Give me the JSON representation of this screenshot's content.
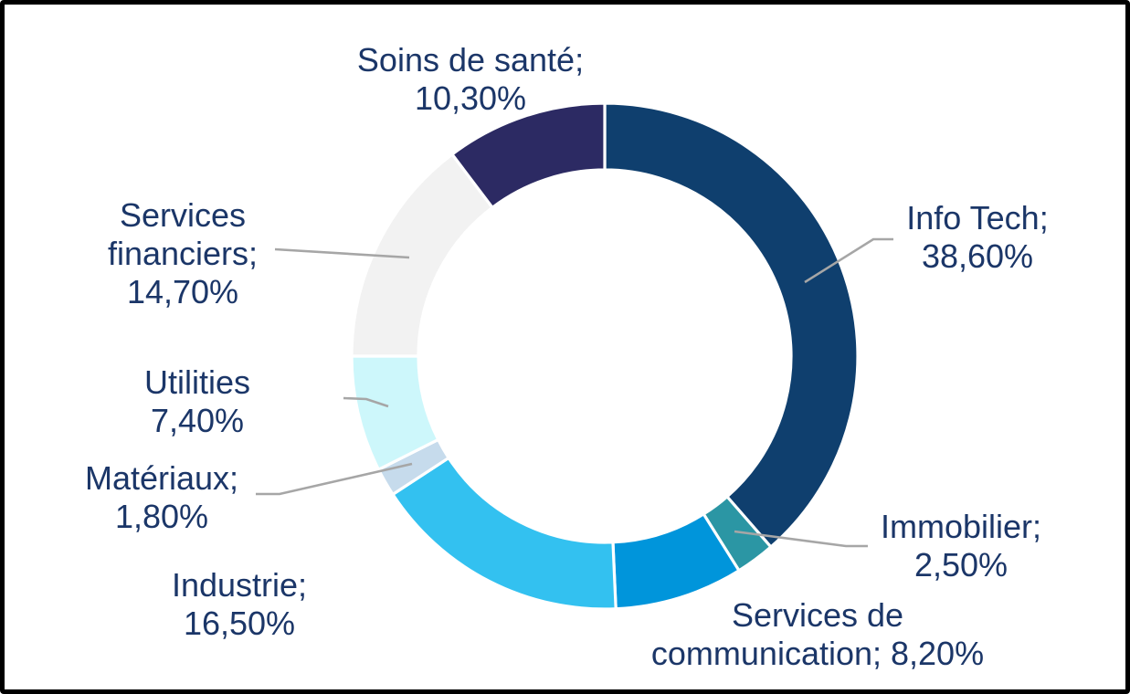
{
  "chart_data": {
    "type": "pie",
    "subtype": "donut",
    "title": "",
    "unit": "%",
    "number_format": "french-comma",
    "start_angle_deg": 0,
    "direction": "clockwise",
    "total": 100,
    "legend_position": "none",
    "segments": [
      {
        "id": "info-tech",
        "label": "Info Tech",
        "value": 38.6,
        "display": "Info Tech; 38,60%",
        "lines": [
          "Info Tech;",
          "38,60%"
        ],
        "color": "#0F3F6E",
        "leader_line": true
      },
      {
        "id": "immobilier",
        "label": "Immobilier",
        "value": 2.5,
        "display": "Immobilier; 2,50%",
        "lines": [
          "Immobilier;",
          "2,50%"
        ],
        "color": "#2B96A4",
        "leader_line": true
      },
      {
        "id": "services-de-communication",
        "label": "Services de communication",
        "value": 8.2,
        "display": "Services de communication; 8,20%",
        "lines": [
          "Services de",
          "communication; 8,20%"
        ],
        "color": "#0095DB",
        "leader_line": false
      },
      {
        "id": "industrie",
        "label": "Industrie",
        "value": 16.5,
        "display": "Industrie; 16,50%",
        "lines": [
          "Industrie;",
          "16,50%"
        ],
        "color": "#33C1F0",
        "leader_line": false
      },
      {
        "id": "materiaux",
        "label": "Matériaux",
        "value": 1.8,
        "display": "Matériaux; 1,80%",
        "lines": [
          "Matériaux;",
          "1,80%"
        ],
        "color": "#C6DBEC",
        "leader_line": true
      },
      {
        "id": "utilities",
        "label": "Utilities",
        "value": 7.4,
        "display": "Utilities 7,40%",
        "lines": [
          "Utilities",
          "7,40%"
        ],
        "color": "#CDF7FB",
        "leader_line": true
      },
      {
        "id": "services-financiers",
        "label": "Services financiers",
        "value": 14.7,
        "display": "Services financiers; 14,70%",
        "lines": [
          "Services",
          "financiers;",
          "14,70%"
        ],
        "color": "#F2F2F2",
        "leader_line": true
      },
      {
        "id": "soins-de-sante",
        "label": "Soins de santé",
        "value": 10.3,
        "display": "Soins de santé; 10,30%",
        "lines": [
          "Soins de santé;",
          "10,30%"
        ],
        "color": "#2C2A63",
        "leader_line": false
      }
    ],
    "colors": {
      "label_text": "#1B3668",
      "leader_line": "#A6A6A6",
      "background": "#FFFFFF",
      "frame_border": "#000000",
      "slice_separator": "#FFFFFF"
    }
  }
}
